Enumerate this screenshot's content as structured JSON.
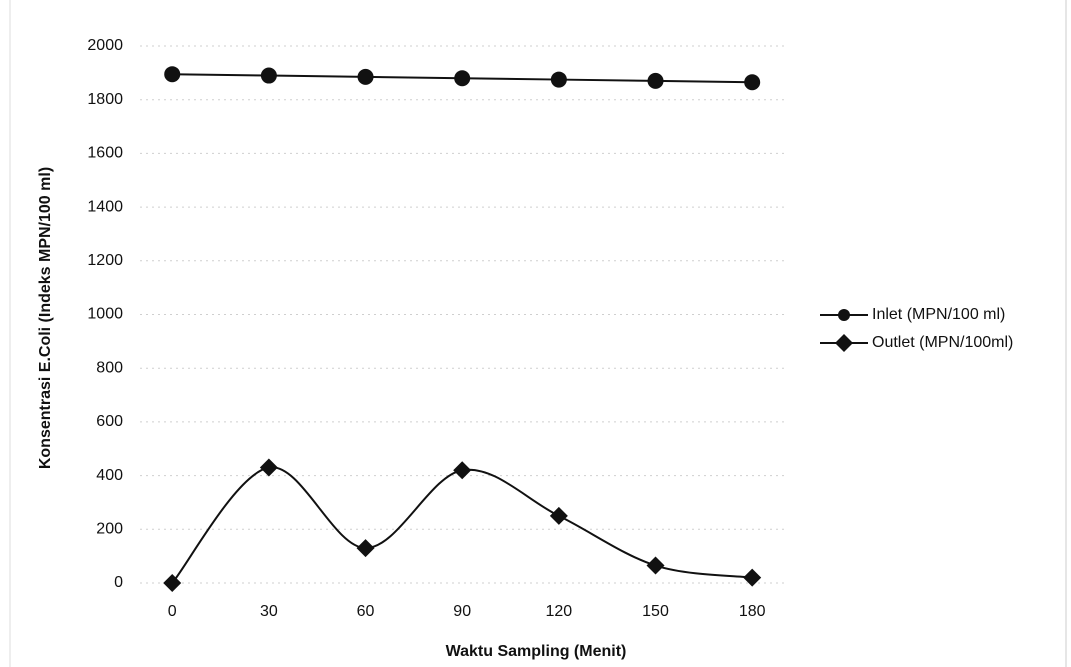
{
  "chart_data": {
    "type": "line",
    "x_label": "Waktu Sampling (Menit)",
    "y_label": "Konsentrasi E.Coli (Indeks MPN/100 ml)",
    "x": [
      0,
      30,
      60,
      90,
      120,
      150,
      180
    ],
    "series": [
      {
        "name": "Inlet (MPN/100 ml)",
        "color": "#111111",
        "marker": "circle",
        "smooth": false,
        "values": [
          1895,
          1890,
          1885,
          1880,
          1875,
          1870,
          1865
        ]
      },
      {
        "name": "Outlet (MPN/100ml)",
        "color": "#111111",
        "marker": "diamond",
        "smooth": true,
        "values": [
          0,
          430,
          130,
          420,
          250,
          65,
          20
        ]
      }
    ],
    "xlim": [
      -10,
      190
    ],
    "xticks": [
      0,
      30,
      60,
      90,
      120,
      150,
      180
    ],
    "ylim": [
      0,
      2000
    ],
    "yticks": [
      0,
      200,
      400,
      600,
      800,
      1000,
      1200,
      1400,
      1600,
      1800,
      2000
    ],
    "grid": true,
    "legend": "right"
  }
}
